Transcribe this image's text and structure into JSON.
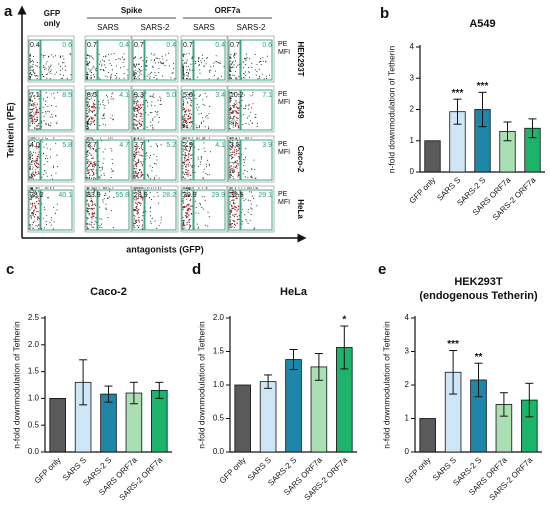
{
  "flow_panel": {
    "panel_label": "a",
    "y_axis_label": "Tetherin (PE)",
    "x_axis_label": "antagonists (GFP)",
    "first_column_lines": [
      "GFP",
      "only"
    ],
    "groups": [
      {
        "label": "Spike",
        "columns": [
          "SARS",
          "SARS-2"
        ]
      },
      {
        "label": "ORF7a",
        "columns": [
          "SARS",
          "SARS-2"
        ]
      }
    ],
    "mfi_label_lines": [
      "PE",
      "MFI"
    ],
    "rows": [
      {
        "label": "HEK293T",
        "cells": [
          [
            "0.4",
            "0.6"
          ],
          [
            "0.7",
            "0.4"
          ],
          [
            "0.7",
            "0.4"
          ],
          [
            "0.7",
            "0.4"
          ],
          [
            "0.7",
            "0.6"
          ]
        ]
      },
      {
        "label": "A549",
        "cells": [
          [
            "7.1",
            "8.5"
          ],
          [
            "8.5",
            "4.1"
          ],
          [
            "9.3",
            "5.0"
          ],
          [
            "5.0",
            "3.4"
          ],
          [
            "10.2",
            "7.1"
          ]
        ]
      },
      {
        "label": "Caco-2",
        "cells": [
          [
            "4.0",
            "5.8"
          ],
          [
            "3.7",
            "4.7"
          ],
          [
            "3.7",
            "5.2"
          ],
          [
            "2.9",
            "4.1"
          ],
          [
            "3.5",
            "3.9"
          ]
        ]
      },
      {
        "label": "HeLa",
        "cells": [
          [
            "28.2",
            "40.1"
          ],
          [
            "33.9",
            "55.8"
          ],
          [
            "28.9",
            "28.2"
          ],
          [
            "29.9",
            "29.9"
          ],
          [
            "32.5",
            "29.1"
          ]
        ]
      }
    ]
  },
  "chart_data": [
    {
      "type": "bar",
      "panel_label": "b",
      "title": "A549",
      "y_axis_label": "n-fold downmodulation of Tetherin",
      "categories": [
        "GFP only",
        "SARS S",
        "SARS-2 S",
        "SARS ORF7a",
        "SARS-2 ORF7a"
      ],
      "values": [
        1,
        1.93,
        2.0,
        1.3,
        1.4
      ],
      "errors": [
        0,
        0.4,
        0.55,
        0.3,
        0.3
      ],
      "significance": [
        null,
        "***",
        "***",
        null,
        null
      ],
      "colors": [
        "#5a5a5a",
        "#cfe6f7",
        "#1e86a8",
        "#a9dfb3",
        "#1db36b"
      ],
      "ylim": [
        0,
        4
      ],
      "yticks": [
        0,
        1,
        2,
        3,
        4
      ]
    },
    {
      "type": "bar",
      "panel_label": "c",
      "title": "Caco-2",
      "y_axis_label": "n-fold downmodulation of Tetherin",
      "categories": [
        "GFP only",
        "SARS S",
        "SARS-2 S",
        "SARS ORF7a",
        "SARS-2 ORF7a"
      ],
      "values": [
        1,
        1.3,
        1.08,
        1.1,
        1.15
      ],
      "errors": [
        0,
        0.42,
        0.15,
        0.2,
        0.15
      ],
      "significance": [
        null,
        null,
        null,
        null,
        null
      ],
      "colors": [
        "#5a5a5a",
        "#cfe6f7",
        "#1e86a8",
        "#a9dfb3",
        "#1db36b"
      ],
      "ylim": [
        0,
        2.5
      ],
      "yticks": [
        {
          "value": 0,
          "label": "0.0"
        },
        0.5,
        {
          "value": 1,
          "label": "1.0"
        },
        1.5,
        {
          "value": 2,
          "label": "2.0"
        },
        2.5
      ]
    },
    {
      "type": "bar",
      "panel_label": "d",
      "title": "HeLa",
      "y_axis_label": "n-fold downmodulation of Tetherin",
      "categories": [
        "GFP only",
        "SARS S",
        "SARS-2 S",
        "SARS ORF7a",
        "SARS-2 ORF7a"
      ],
      "values": [
        1,
        1.05,
        1.38,
        1.27,
        1.56
      ],
      "errors": [
        0,
        0.1,
        0.15,
        0.2,
        0.32
      ],
      "significance": [
        null,
        null,
        null,
        null,
        "*"
      ],
      "colors": [
        "#5a5a5a",
        "#cfe6f7",
        "#1e86a8",
        "#a9dfb3",
        "#1db36b"
      ],
      "ylim": [
        0,
        2
      ],
      "yticks": [
        {
          "value": 0,
          "label": "0.0"
        },
        0.5,
        {
          "value": 1,
          "label": "1.0"
        },
        1.5,
        {
          "value": 2,
          "label": "2.0"
        }
      ]
    },
    {
      "type": "bar",
      "panel_label": "e",
      "title": "HEK293T",
      "subtitle": "(endogenous Tetherin)",
      "y_axis_label": "n-fold downmodulation of Tetherin",
      "categories": [
        "GFP only",
        "SARS S",
        "SARS-2 S",
        "SARS ORF7a",
        "SARS-2 ORF7a"
      ],
      "values": [
        1,
        2.38,
        2.15,
        1.42,
        1.55
      ],
      "errors": [
        0,
        0.65,
        0.5,
        0.35,
        0.5
      ],
      "significance": [
        null,
        "***",
        "**",
        null,
        null
      ],
      "colors": [
        "#5a5a5a",
        "#cfe6f7",
        "#1e86a8",
        "#a9dfb3",
        "#1db36b"
      ],
      "ylim": [
        0,
        4
      ],
      "yticks": [
        0,
        1,
        2,
        3,
        4
      ]
    }
  ]
}
